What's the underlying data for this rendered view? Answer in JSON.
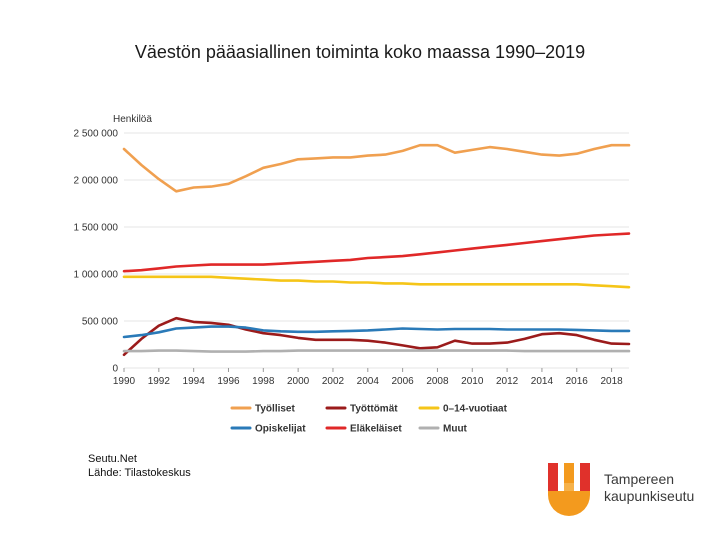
{
  "slide": {
    "title": "Väestön pääasiallinen toiminta koko maassa 1990–2019",
    "source_line1": "Seutu.Net",
    "source_line2": "Lähde: Tilastokeskus",
    "logo_line1": "Tampereen",
    "logo_line2": "kaupunkiseutu"
  },
  "colors": {
    "Tyolliset": "#f0a050",
    "Tyottomat": "#9b1b1b",
    "0-14": "#f5c518",
    "Opiskelijat": "#2a7ab8",
    "Elakelaiset": "#e02828",
    "Muut": "#b0b0b0",
    "grid": "#e4e4e4",
    "logo_orange": "#f39a1e",
    "logo_red": "#e0312b"
  },
  "chart_data": {
    "type": "line",
    "title": "",
    "ylabel": "Henkilöä",
    "xlabel": "",
    "ylim": [
      0,
      2500000
    ],
    "y_ticks": [
      0,
      500000,
      1000000,
      1500000,
      2000000,
      2500000
    ],
    "y_tick_labels": [
      "0",
      "500 000",
      "1 000 000",
      "1 500 000",
      "2 000 000",
      "2 500 000"
    ],
    "x_ticks": [
      1990,
      1992,
      1994,
      1996,
      1998,
      2000,
      2002,
      2004,
      2006,
      2008,
      2010,
      2012,
      2014,
      2016,
      2018
    ],
    "x_tick_labels": [
      "1990",
      "1992",
      "1994",
      "1996",
      "1998",
      "2000",
      "2002",
      "2004",
      "2006",
      "2008",
      "2010",
      "2012",
      "2014",
      "2016",
      "2018"
    ],
    "x": [
      1990,
      1991,
      1992,
      1993,
      1994,
      1995,
      1996,
      1997,
      1998,
      1999,
      2000,
      2001,
      2002,
      2003,
      2004,
      2005,
      2006,
      2007,
      2008,
      2009,
      2010,
      2011,
      2012,
      2013,
      2014,
      2015,
      2016,
      2017,
      2018,
      2019
    ],
    "legend_position": "bottom",
    "series": [
      {
        "key": "Tyolliset",
        "name": "Työlliset",
        "values": [
          2330000,
          2160000,
          2010000,
          1880000,
          1920000,
          1930000,
          1960000,
          2040000,
          2130000,
          2170000,
          2220000,
          2230000,
          2240000,
          2240000,
          2260000,
          2270000,
          2310000,
          2370000,
          2370000,
          2290000,
          2320000,
          2350000,
          2330000,
          2300000,
          2270000,
          2260000,
          2280000,
          2330000,
          2370000,
          2370000
        ]
      },
      {
        "key": "Tyottomat",
        "name": "Työttömät",
        "values": [
          140000,
          310000,
          450000,
          530000,
          490000,
          480000,
          460000,
          410000,
          370000,
          350000,
          320000,
          300000,
          300000,
          300000,
          290000,
          270000,
          240000,
          210000,
          220000,
          290000,
          260000,
          260000,
          270000,
          310000,
          360000,
          370000,
          350000,
          300000,
          260000,
          255000
        ]
      },
      {
        "key": "0-14",
        "name": "0–14-vuotiaat",
        "values": [
          970000,
          970000,
          970000,
          970000,
          970000,
          970000,
          960000,
          950000,
          940000,
          930000,
          930000,
          920000,
          920000,
          910000,
          910000,
          900000,
          900000,
          890000,
          890000,
          890000,
          890000,
          890000,
          890000,
          890000,
          890000,
          890000,
          890000,
          880000,
          870000,
          860000
        ]
      },
      {
        "key": "Opiskelijat",
        "name": "Opiskelijat",
        "values": [
          330000,
          350000,
          380000,
          420000,
          430000,
          440000,
          440000,
          430000,
          400000,
          390000,
          385000,
          385000,
          390000,
          395000,
          400000,
          410000,
          420000,
          415000,
          410000,
          415000,
          415000,
          415000,
          410000,
          410000,
          410000,
          410000,
          405000,
          400000,
          395000,
          395000
        ]
      },
      {
        "key": "Elakelaiset",
        "name": "Eläkeläiset",
        "values": [
          1030000,
          1040000,
          1060000,
          1080000,
          1090000,
          1100000,
          1100000,
          1100000,
          1100000,
          1110000,
          1120000,
          1130000,
          1140000,
          1150000,
          1170000,
          1180000,
          1190000,
          1210000,
          1230000,
          1250000,
          1270000,
          1290000,
          1310000,
          1330000,
          1350000,
          1370000,
          1390000,
          1410000,
          1420000,
          1430000
        ]
      },
      {
        "key": "Muut",
        "name": "Muut",
        "values": [
          180000,
          180000,
          185000,
          185000,
          180000,
          175000,
          175000,
          175000,
          180000,
          180000,
          185000,
          185000,
          185000,
          185000,
          185000,
          185000,
          185000,
          185000,
          185000,
          185000,
          185000,
          185000,
          185000,
          180000,
          180000,
          180000,
          180000,
          180000,
          180000,
          180000
        ]
      }
    ],
    "legend_rows": [
      [
        "Tyolliset",
        "Tyottomat",
        "0-14"
      ],
      [
        "Opiskelijat",
        "Elakelaiset",
        "Muut"
      ]
    ]
  }
}
